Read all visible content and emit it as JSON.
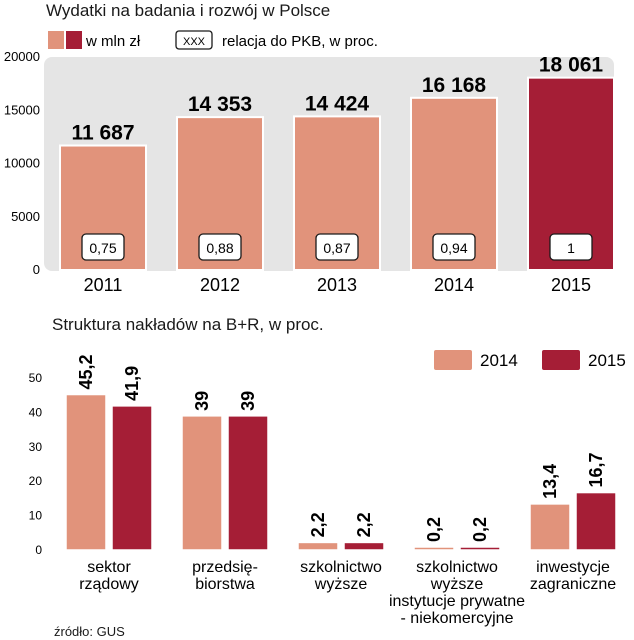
{
  "colors": {
    "light": "#E1937B",
    "dark": "#A51E36",
    "panel": "#E5E5E5",
    "text": "#1a1a1a"
  },
  "chart_data": [
    {
      "type": "bar",
      "title": "Wydatki na badania i rozwój w Polsce",
      "legend": {
        "swatch_label": "w mln zł",
        "box_label": "XXX",
        "box_desc": "relacja do PKB, w proc."
      },
      "categories": [
        "2011",
        "2012",
        "2013",
        "2014",
        "2015"
      ],
      "values": [
        11687,
        14353,
        14424,
        16168,
        18061
      ],
      "value_labels": [
        "11 687",
        "14 353",
        "14 424",
        "16 168",
        "18 061"
      ],
      "gdp_ratio": [
        "0,75",
        "0,88",
        "0,87",
        "0,94",
        "1"
      ],
      "highlight_index": 4,
      "yticks": [
        0,
        5000,
        10000,
        15000,
        20000
      ],
      "ylim": [
        0,
        20000
      ],
      "grid": false
    },
    {
      "type": "bar",
      "title": "Struktura nakładów na B+R, w proc.",
      "categories": [
        "sektor rządowy",
        "przedsię-biorstwa",
        "szkolnictwo wyższe",
        "szkolnictwo wyższe instytucje prywatne - niekomercyjne",
        "inwestycje zagraniczne"
      ],
      "category_lines": [
        [
          "sektor",
          "rządowy"
        ],
        [
          "przedsię-",
          "biorstwa"
        ],
        [
          "szkolnictwo",
          "wyższe"
        ],
        [
          "szkolnictwo",
          "wyższe",
          "instytucje prywatne",
          "- niekomercyjne"
        ],
        [
          "inwestycje",
          "zagraniczne"
        ]
      ],
      "series": [
        {
          "name": "2014",
          "values": [
            45.2,
            39,
            2.2,
            0.2,
            13.4
          ],
          "labels": [
            "45,2",
            "39",
            "2,2",
            "0,2",
            "13,4"
          ]
        },
        {
          "name": "2015",
          "values": [
            41.9,
            39,
            2.2,
            0.2,
            16.7
          ],
          "labels": [
            "41,9",
            "39",
            "2,2",
            "0,2",
            "16,7"
          ]
        }
      ],
      "yticks": [
        0,
        10,
        20,
        30,
        40,
        50
      ],
      "ylim": [
        0,
        50
      ],
      "legend_position": "top-right",
      "grid": false
    }
  ],
  "source": "źródło: GUS"
}
